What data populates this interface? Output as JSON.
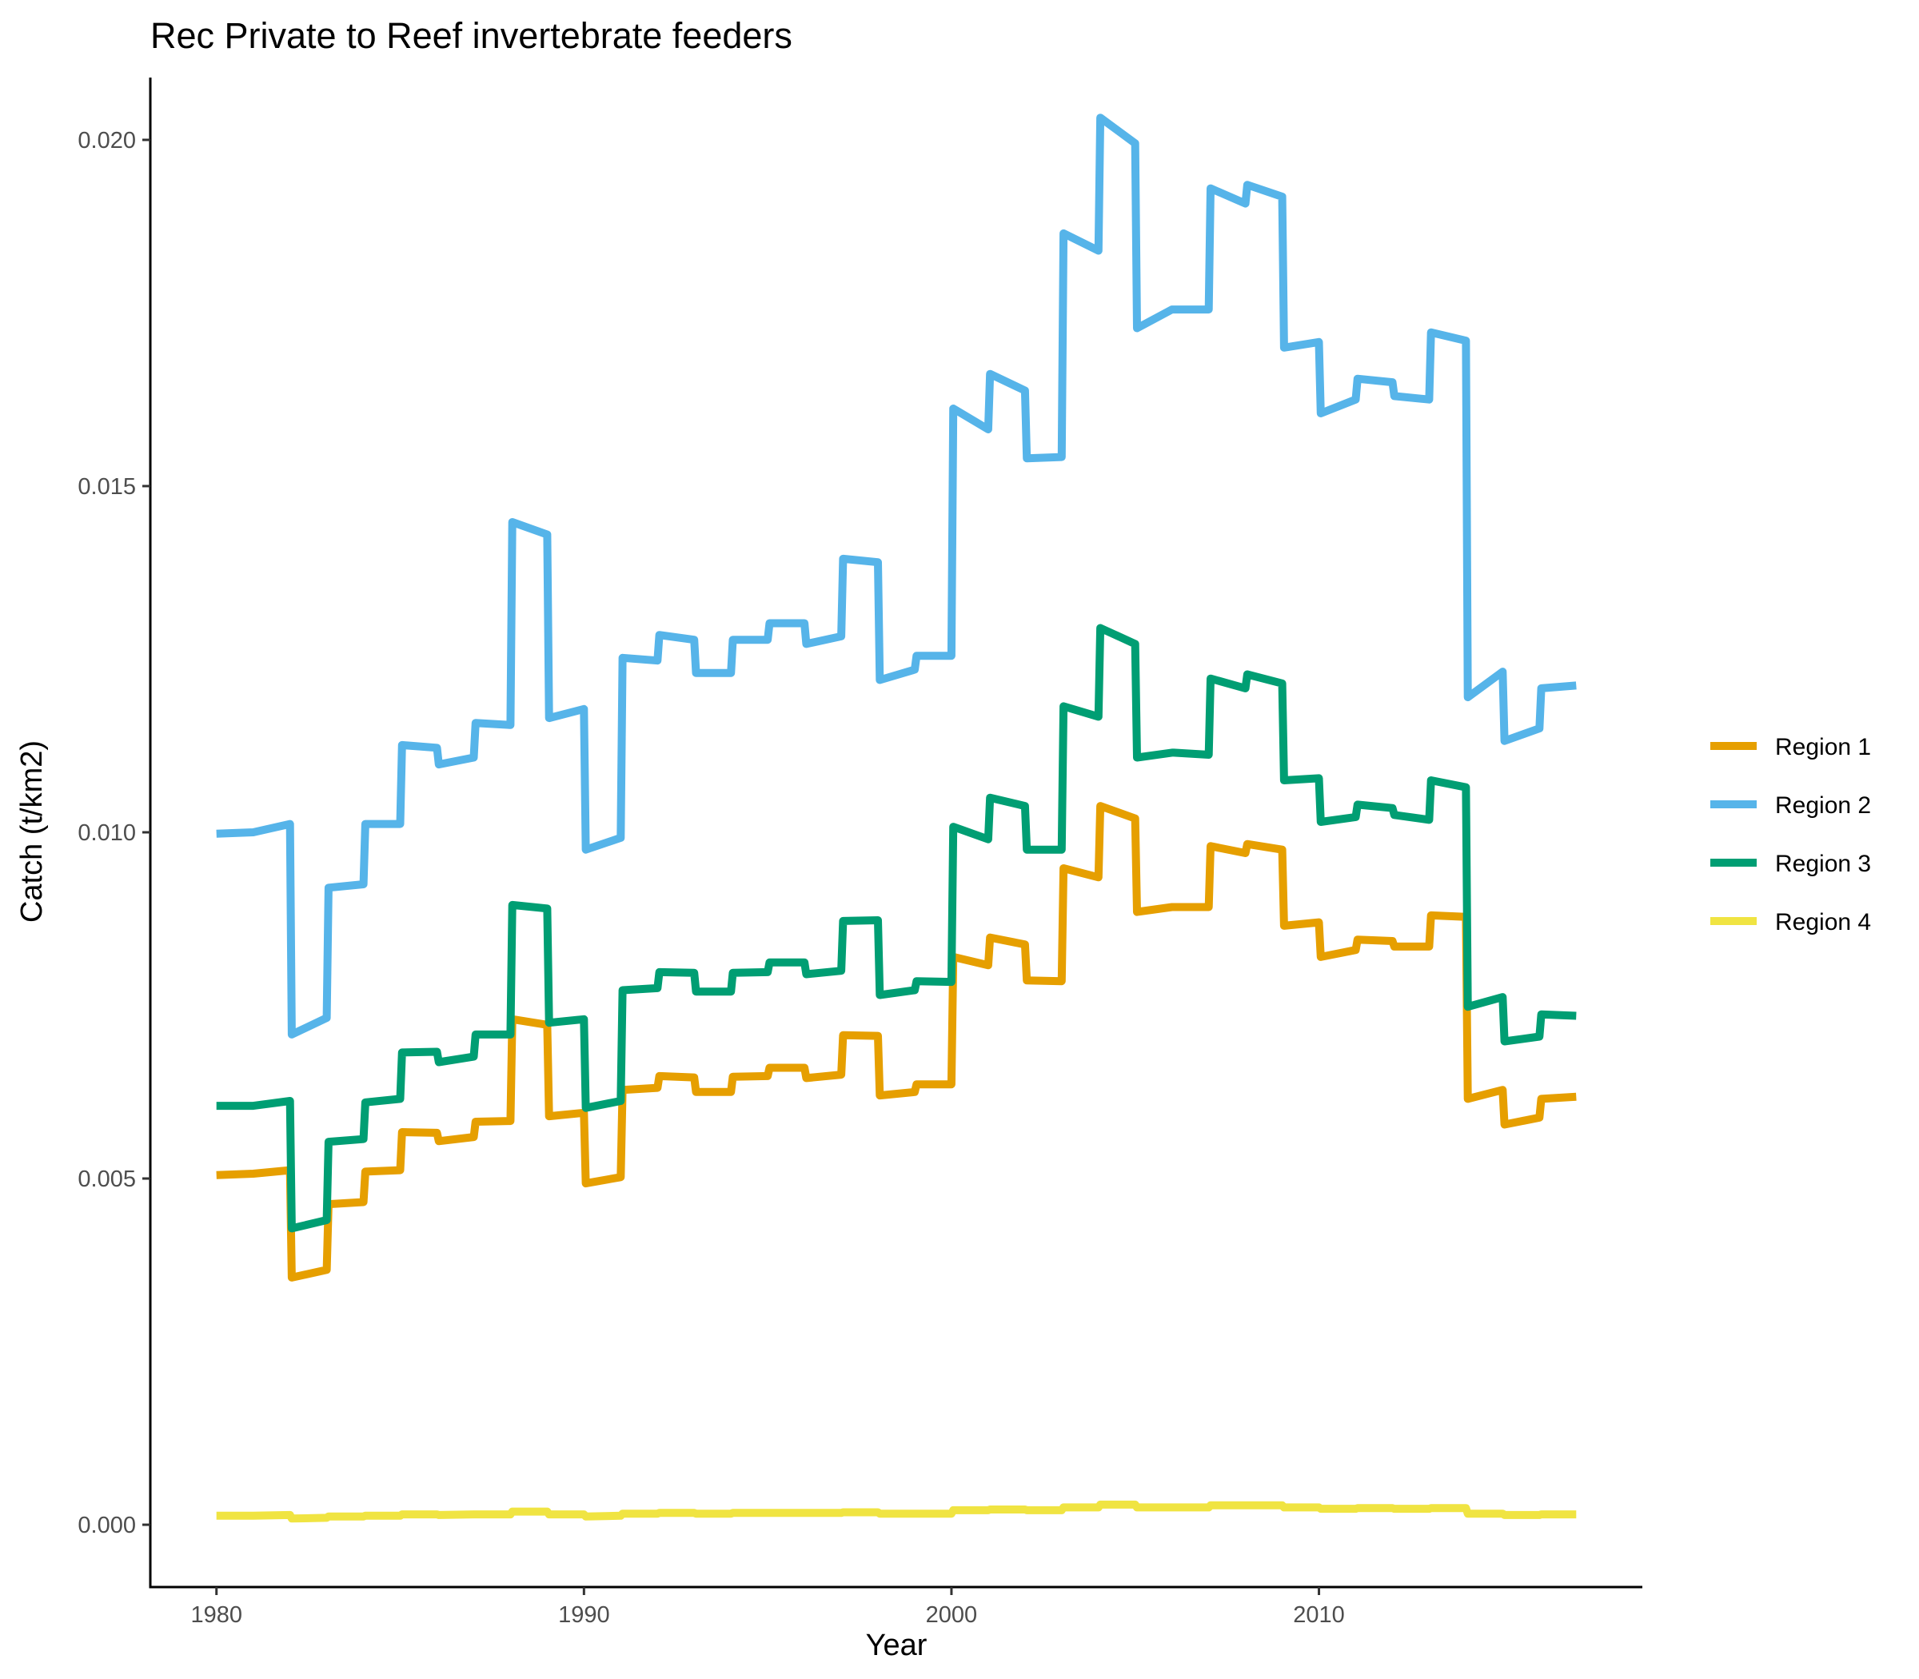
{
  "chart_data": {
    "type": "line",
    "title": "Rec Private to Reef invertebrate feeders",
    "xlabel": "Year",
    "ylabel": "Catch (t/km2)",
    "xlim": [
      1978.2,
      2018.8
    ],
    "ylim": [
      -0.0009,
      0.0209
    ],
    "x_ticks": [
      1980,
      1990,
      2000,
      2010
    ],
    "x_tick_labels": [
      "1980",
      "1990",
      "2000",
      "2010"
    ],
    "y_ticks": [
      0.0,
      0.005,
      0.01,
      0.015,
      0.02
    ],
    "y_tick_labels": [
      "0.000",
      "0.005",
      "0.010",
      "0.015",
      "0.020"
    ],
    "grid": false,
    "legend_position": "right",
    "series": [
      {
        "name": "Region 1",
        "color": "#E69F00",
        "points": [
          [
            1980,
            0.00505
          ],
          [
            1981,
            0.00507
          ],
          [
            1982,
            0.00512
          ],
          [
            1982.05,
            0.00357
          ],
          [
            1983,
            0.00368
          ],
          [
            1983.05,
            0.00463
          ],
          [
            1984,
            0.00466
          ],
          [
            1984.05,
            0.0051
          ],
          [
            1985,
            0.00512
          ],
          [
            1985.05,
            0.00567
          ],
          [
            1986,
            0.00566
          ],
          [
            1986.05,
            0.00554
          ],
          [
            1987,
            0.0056
          ],
          [
            1987.05,
            0.00582
          ],
          [
            1988,
            0.00583
          ],
          [
            1988.05,
            0.0073
          ],
          [
            1989,
            0.00722
          ],
          [
            1989.05,
            0.0059
          ],
          [
            1990,
            0.00595
          ],
          [
            1990.05,
            0.00493
          ],
          [
            1991,
            0.00502
          ],
          [
            1991.05,
            0.00628
          ],
          [
            1992,
            0.00631
          ],
          [
            1992.05,
            0.00648
          ],
          [
            1993,
            0.00646
          ],
          [
            1993.05,
            0.00625
          ],
          [
            1994,
            0.00625
          ],
          [
            1994.05,
            0.00647
          ],
          [
            1995,
            0.00648
          ],
          [
            1995.05,
            0.0066
          ],
          [
            1996,
            0.0066
          ],
          [
            1996.05,
            0.00645
          ],
          [
            1997,
            0.0065
          ],
          [
            1997.05,
            0.00707
          ],
          [
            1998,
            0.00706
          ],
          [
            1998.05,
            0.0062
          ],
          [
            1999,
            0.00625
          ],
          [
            1999.05,
            0.00636
          ],
          [
            2000,
            0.00636
          ],
          [
            2000.05,
            0.0082
          ],
          [
            2001,
            0.00808
          ],
          [
            2001.05,
            0.00848
          ],
          [
            2002,
            0.00838
          ],
          [
            2002.05,
            0.00786
          ],
          [
            2003,
            0.00785
          ],
          [
            2003.05,
            0.00948
          ],
          [
            2004,
            0.00935
          ],
          [
            2004.05,
            0.01038
          ],
          [
            2005,
            0.0102
          ],
          [
            2005.05,
            0.00885
          ],
          [
            2006,
            0.00892
          ],
          [
            2006.05,
            0.00892
          ],
          [
            2007,
            0.00892
          ],
          [
            2007.05,
            0.0098
          ],
          [
            2008,
            0.0097
          ],
          [
            2008.05,
            0.00983
          ],
          [
            2009,
            0.00975
          ],
          [
            2009.05,
            0.00865
          ],
          [
            2010,
            0.0087
          ],
          [
            2010.05,
            0.0082
          ],
          [
            2011,
            0.0083
          ],
          [
            2011.05,
            0.00845
          ],
          [
            2012,
            0.00843
          ],
          [
            2012.05,
            0.00835
          ],
          [
            2013,
            0.00835
          ],
          [
            2013.05,
            0.0088
          ],
          [
            2014,
            0.00878
          ],
          [
            2014.05,
            0.00615
          ],
          [
            2015,
            0.00628
          ],
          [
            2015.05,
            0.00578
          ],
          [
            2016,
            0.00588
          ],
          [
            2016.05,
            0.00615
          ],
          [
            2017,
            0.00618
          ]
        ]
      },
      {
        "name": "Region 2",
        "color": "#56B4E9",
        "points": [
          [
            1980,
            0.00998
          ],
          [
            1981,
            0.01
          ],
          [
            1982,
            0.01012
          ],
          [
            1982.05,
            0.00708
          ],
          [
            1983,
            0.00732
          ],
          [
            1983.05,
            0.0092
          ],
          [
            1984,
            0.00925
          ],
          [
            1984.05,
            0.01012
          ],
          [
            1985,
            0.01012
          ],
          [
            1985.05,
            0.01126
          ],
          [
            1986,
            0.01122
          ],
          [
            1986.05,
            0.01098
          ],
          [
            1987,
            0.01108
          ],
          [
            1987.05,
            0.01158
          ],
          [
            1988,
            0.01155
          ],
          [
            1988.05,
            0.01448
          ],
          [
            1989,
            0.0143
          ],
          [
            1989.05,
            0.01165
          ],
          [
            1990,
            0.01178
          ],
          [
            1990.05,
            0.00975
          ],
          [
            1991,
            0.00992
          ],
          [
            1991.05,
            0.01252
          ],
          [
            1992,
            0.01248
          ],
          [
            1992.05,
            0.01285
          ],
          [
            1993,
            0.01278
          ],
          [
            1993.05,
            0.0123
          ],
          [
            1994,
            0.0123
          ],
          [
            1994.05,
            0.01278
          ],
          [
            1995,
            0.01278
          ],
          [
            1995.05,
            0.01302
          ],
          [
            1996,
            0.01302
          ],
          [
            1996.05,
            0.01272
          ],
          [
            1997,
            0.01283
          ],
          [
            1997.05,
            0.01395
          ],
          [
            1998,
            0.0139
          ],
          [
            1998.05,
            0.0122
          ],
          [
            1999,
            0.01235
          ],
          [
            1999.05,
            0.01255
          ],
          [
            2000,
            0.01255
          ],
          [
            2000.05,
            0.01612
          ],
          [
            2001,
            0.01582
          ],
          [
            2001.05,
            0.01662
          ],
          [
            2002,
            0.01638
          ],
          [
            2002.05,
            0.0154
          ],
          [
            2003,
            0.01542
          ],
          [
            2003.05,
            0.01865
          ],
          [
            2004,
            0.0184
          ],
          [
            2004.05,
            0.02032
          ],
          [
            2005,
            0.01995
          ],
          [
            2005.05,
            0.01728
          ],
          [
            2006,
            0.01755
          ],
          [
            2006.05,
            0.01755
          ],
          [
            2007,
            0.01755
          ],
          [
            2007.05,
            0.0193
          ],
          [
            2008,
            0.01908
          ],
          [
            2008.05,
            0.01935
          ],
          [
            2009,
            0.01918
          ],
          [
            2009.05,
            0.017
          ],
          [
            2010,
            0.01708
          ],
          [
            2010.05,
            0.01605
          ],
          [
            2011,
            0.01625
          ],
          [
            2011.05,
            0.01655
          ],
          [
            2012,
            0.0165
          ],
          [
            2012.05,
            0.0163
          ],
          [
            2013,
            0.01625
          ],
          [
            2013.05,
            0.01722
          ],
          [
            2014,
            0.0171
          ],
          [
            2014.05,
            0.01195
          ],
          [
            2015,
            0.01232
          ],
          [
            2015.05,
            0.01132
          ],
          [
            2016,
            0.0115
          ],
          [
            2016.05,
            0.01208
          ],
          [
            2017,
            0.01212
          ]
        ]
      },
      {
        "name": "Region 3",
        "color": "#009E73",
        "points": [
          [
            1980,
            0.00605
          ],
          [
            1981,
            0.00605
          ],
          [
            1982,
            0.00612
          ],
          [
            1982.05,
            0.00428
          ],
          [
            1983,
            0.0044
          ],
          [
            1983.05,
            0.00553
          ],
          [
            1984,
            0.00557
          ],
          [
            1984.05,
            0.0061
          ],
          [
            1985,
            0.00615
          ],
          [
            1985.05,
            0.00682
          ],
          [
            1986,
            0.00683
          ],
          [
            1986.05,
            0.00668
          ],
          [
            1987,
            0.00676
          ],
          [
            1987.05,
            0.00708
          ],
          [
            1988,
            0.00708
          ],
          [
            1988.05,
            0.00895
          ],
          [
            1989,
            0.0089
          ],
          [
            1989.05,
            0.00725
          ],
          [
            1990,
            0.0073
          ],
          [
            1990.05,
            0.00602
          ],
          [
            1991,
            0.00612
          ],
          [
            1991.05,
            0.00772
          ],
          [
            1992,
            0.00775
          ],
          [
            1992.05,
            0.00798
          ],
          [
            1993,
            0.00797
          ],
          [
            1993.05,
            0.0077
          ],
          [
            1994,
            0.0077
          ],
          [
            1994.05,
            0.00797
          ],
          [
            1995,
            0.00798
          ],
          [
            1995.05,
            0.00812
          ],
          [
            1996,
            0.00812
          ],
          [
            1996.05,
            0.00795
          ],
          [
            1997,
            0.008
          ],
          [
            1997.05,
            0.00872
          ],
          [
            1998,
            0.00873
          ],
          [
            1998.05,
            0.00765
          ],
          [
            1999,
            0.00772
          ],
          [
            1999.05,
            0.00785
          ],
          [
            2000,
            0.00784
          ],
          [
            2000.05,
            0.01008
          ],
          [
            2001,
            0.0099
          ],
          [
            2001.05,
            0.0105
          ],
          [
            2002,
            0.01038
          ],
          [
            2002.05,
            0.00975
          ],
          [
            2003,
            0.00975
          ],
          [
            2003.05,
            0.01182
          ],
          [
            2004,
            0.01167
          ],
          [
            2004.05,
            0.01295
          ],
          [
            2005,
            0.01272
          ],
          [
            2005.05,
            0.01108
          ],
          [
            2006,
            0.01115
          ],
          [
            2006.05,
            0.01115
          ],
          [
            2007,
            0.01112
          ],
          [
            2007.05,
            0.01222
          ],
          [
            2008,
            0.01208
          ],
          [
            2008.05,
            0.01228
          ],
          [
            2009,
            0.01215
          ],
          [
            2009.05,
            0.01075
          ],
          [
            2010,
            0.01078
          ],
          [
            2010.05,
            0.01015
          ],
          [
            2011,
            0.01022
          ],
          [
            2011.05,
            0.0104
          ],
          [
            2012,
            0.01035
          ],
          [
            2012.05,
            0.01025
          ],
          [
            2013,
            0.01018
          ],
          [
            2013.05,
            0.01075
          ],
          [
            2014,
            0.01065
          ],
          [
            2014.05,
            0.00748
          ],
          [
            2015,
            0.00762
          ],
          [
            2015.05,
            0.00698
          ],
          [
            2016,
            0.00705
          ],
          [
            2016.05,
            0.00737
          ],
          [
            2017,
            0.00735
          ]
        ]
      },
      {
        "name": "Region 4",
        "color": "#F0E442",
        "points": [
          [
            1980,
            0.00013
          ],
          [
            1981,
            0.00013
          ],
          [
            1982,
            0.00014
          ],
          [
            1982.05,
            9e-05
          ],
          [
            1983,
            0.0001
          ],
          [
            1983.05,
            0.00012
          ],
          [
            1984,
            0.00012
          ],
          [
            1984.05,
            0.00013
          ],
          [
            1985,
            0.00013
          ],
          [
            1985.05,
            0.00015
          ],
          [
            1986,
            0.00015
          ],
          [
            1986.05,
            0.00014
          ],
          [
            1987,
            0.00015
          ],
          [
            1987.05,
            0.00015
          ],
          [
            1988,
            0.00015
          ],
          [
            1988.05,
            0.00019
          ],
          [
            1989,
            0.00019
          ],
          [
            1989.05,
            0.00015
          ],
          [
            1990,
            0.00015
          ],
          [
            1990.05,
            0.00012
          ],
          [
            1991,
            0.00013
          ],
          [
            1991.05,
            0.00016
          ],
          [
            1992,
            0.00016
          ],
          [
            1992.05,
            0.00017
          ],
          [
            1993,
            0.00017
          ],
          [
            1993.05,
            0.00016
          ],
          [
            1994,
            0.00016
          ],
          [
            1994.05,
            0.00017
          ],
          [
            1995,
            0.00017
          ],
          [
            1995.05,
            0.00017
          ],
          [
            1996,
            0.00017
          ],
          [
            1996.05,
            0.00017
          ],
          [
            1997,
            0.00017
          ],
          [
            1997.05,
            0.00018
          ],
          [
            1998,
            0.00018
          ],
          [
            1998.05,
            0.00016
          ],
          [
            1999,
            0.00016
          ],
          [
            1999.05,
            0.00016
          ],
          [
            2000,
            0.00016
          ],
          [
            2000.05,
            0.00021
          ],
          [
            2001,
            0.00021
          ],
          [
            2001.05,
            0.00022
          ],
          [
            2002,
            0.00022
          ],
          [
            2002.05,
            0.00021
          ],
          [
            2003,
            0.00021
          ],
          [
            2003.05,
            0.00025
          ],
          [
            2004,
            0.00025
          ],
          [
            2004.05,
            0.00029
          ],
          [
            2005,
            0.00029
          ],
          [
            2005.05,
            0.00025
          ],
          [
            2006,
            0.00025
          ],
          [
            2006.05,
            0.00025
          ],
          [
            2007,
            0.00025
          ],
          [
            2007.05,
            0.00028
          ],
          [
            2008,
            0.00028
          ],
          [
            2008.05,
            0.00028
          ],
          [
            2009,
            0.00028
          ],
          [
            2009.05,
            0.00025
          ],
          [
            2010,
            0.00025
          ],
          [
            2010.05,
            0.00023
          ],
          [
            2011,
            0.00023
          ],
          [
            2011.05,
            0.00024
          ],
          [
            2012,
            0.00024
          ],
          [
            2012.05,
            0.00023
          ],
          [
            2013,
            0.00023
          ],
          [
            2013.05,
            0.00024
          ],
          [
            2014,
            0.00024
          ],
          [
            2014.05,
            0.00016
          ],
          [
            2015,
            0.00016
          ],
          [
            2015.05,
            0.00014
          ],
          [
            2016,
            0.00014
          ],
          [
            2016.05,
            0.00015
          ],
          [
            2017,
            0.00015
          ]
        ]
      }
    ]
  }
}
